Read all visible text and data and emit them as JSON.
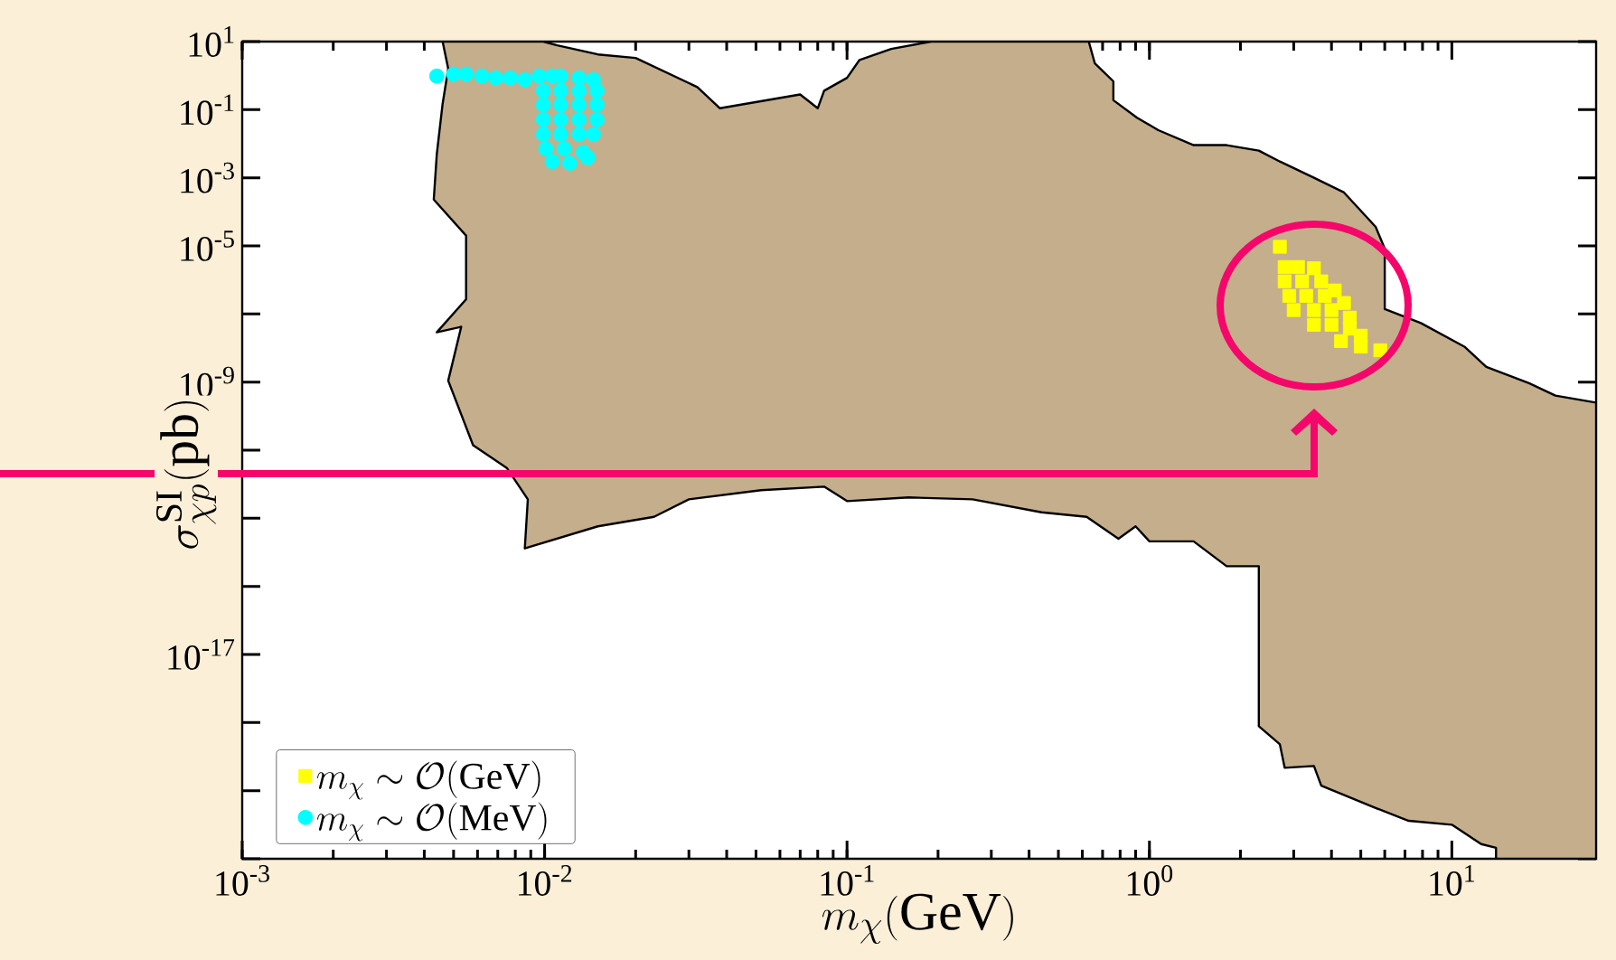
{
  "chart_data": {
    "type": "area",
    "xlabel": "m_\\chi(\\mathrm{GeV})",
    "ylabel": "\\sigma^{\\mathrm{SI}}_{\\chi p}(\\mathrm{pb})",
    "log": "xy",
    "legend": "bottom left",
    "xlim": [
      0.001,
      30
    ],
    "ylim": [
      1e-23,
      10
    ],
    "xticks": [
      {
        "value": 0.001,
        "label": "10$^{-3}$"
      },
      {
        "value": 0.01,
        "label": "10$^{-2}$"
      },
      {
        "value": 0.1,
        "label": "10$^{-1}$"
      },
      {
        "value": 1,
        "label": "10$^{0}$"
      },
      {
        "value": 10,
        "label": "10$^{1}$"
      }
    ],
    "yticks": [
      {
        "value": 10,
        "label": "10$^{1}$"
      },
      {
        "value": 0.1,
        "label": "10$^{-1}$"
      },
      {
        "value": 0.001,
        "label": "10$^{-3}$"
      },
      {
        "value": 1e-05,
        "label": "10$^{-5}$"
      },
      {
        "value": 1e-07,
        "label": null
      },
      {
        "value": 1e-09,
        "label": "10$^{-9}$"
      },
      {
        "value": 1e-11,
        "label": null
      },
      {
        "value": 1e-13,
        "label": null
      },
      {
        "value": 1e-15,
        "label": null
      },
      {
        "value": 1e-17,
        "label": "10$^{-17}$"
      },
      {
        "value": 1e-19,
        "label": null
      },
      {
        "value": 1e-21,
        "label": null
      },
      {
        "value": 1e-23,
        "label": null
      }
    ],
    "series": [
      {
        "color": "#c4ae8c",
        "x": [
          0.0046,
          0.0048,
          0.0046,
          0.0044,
          0.0043,
          0.0055,
          0.0055,
          0.0044,
          0.0053,
          0.0048,
          0.0058,
          0.0075,
          0.0088,
          0.0086,
          0.015,
          0.023,
          0.03,
          0.052,
          0.084,
          0.1,
          0.16,
          0.26,
          0.44,
          0.62,
          0.79,
          0.9,
          1.0,
          1.4,
          1.8,
          2.3,
          2.3,
          2.7,
          2.8,
          3.5,
          3.7,
          5.6,
          7.2,
          10,
          12.5,
          14,
          14,
          30,
          30,
          22,
          18,
          13,
          11,
          7.9,
          6.0,
          6.0,
          5.6,
          4.4,
          3.5,
          2.7,
          2.3,
          1.8,
          1.4,
          1.07,
          0.91,
          0.76,
          0.76,
          0.66,
          0.63,
          0.19,
          0.14,
          0.11,
          0.1,
          0.084,
          0.08,
          0.07,
          0.038,
          0.032,
          0.02,
          0.015,
          0.011,
          0.0099
        ],
        "values": [
          10,
          1.6,
          0.15,
          0.0049,
          0.00023,
          2e-05,
          2.7e-07,
          2.9e-08,
          4.2e-08,
          1.1e-09,
          1.4e-11,
          3e-12,
          3.6e-13,
          1.3e-14,
          5.8e-14,
          1.1e-13,
          3.6e-13,
          6.7e-13,
          8.5e-13,
          3.2e-13,
          4.1e-13,
          3.6e-13,
          1.5e-13,
          1.1e-13,
          2.5e-14,
          5.8e-14,
          2.1e-14,
          2.1e-14,
          3.9e-15,
          3.9e-15,
          7.8e-20,
          2.3e-20,
          4.7e-21,
          5.3e-21,
          1.4e-21,
          3.1e-22,
          1.3e-22,
          1e-22,
          2.7e-23,
          2.1e-23,
          1e-23,
          1e-23,
          2.5e-10,
          4e-10,
          9.3e-10,
          2.8e-09,
          1.1e-08,
          5.4e-08,
          1.4e-07,
          8.3e-06,
          3.6e-05,
          0.00037,
          0.001,
          0.003,
          0.0063,
          0.0091,
          0.0091,
          0.025,
          0.058,
          0.19,
          0.68,
          2.3,
          10,
          10,
          6.1,
          2.9,
          0.86,
          0.36,
          0.11,
          0.28,
          0.11,
          0.46,
          3.3,
          4.2,
          7.8,
          10
        ]
      },
      {
        "type": "scatter",
        "name": "m_\\chi \\sim \\mathcal{O}(\\mathrm{GeV})",
        "color": "#ffff00",
        "marker": "square",
        "x": [
          2.7,
          2.8,
          3.1,
          3.5,
          2.8,
          3.2,
          3.7,
          4.1,
          2.9,
          3.3,
          3.8,
          4.4,
          3.0,
          3.5,
          4.0,
          4.6,
          3.5,
          4.0,
          4.6,
          5.0,
          4.3,
          5.0,
          5.8
        ],
        "values": [
          9.4e-06,
          2.4e-06,
          2.4e-06,
          2.2e-06,
          9.1e-07,
          9.1e-07,
          9.1e-07,
          4.9e-07,
          3.4e-07,
          3.4e-07,
          3.4e-07,
          2.1e-07,
          1.3e-07,
          1.3e-07,
          1.3e-07,
          7.8e-08,
          4.8e-08,
          4.8e-08,
          3.7e-08,
          2.3e-08,
          1.6e-08,
          1.1e-08,
          8.6e-09
        ]
      },
      {
        "type": "scatter",
        "name": "m_\\chi \\sim \\mathcal{O}(\\mathrm{MeV})",
        "color": "#00ffff",
        "marker": "circle",
        "x": [
          0.0044,
          0.005,
          0.0055,
          0.0062,
          0.0069,
          0.0077,
          0.0086,
          0.0096,
          0.0106,
          0.0113,
          0.013,
          0.0145,
          0.0099,
          0.0113,
          0.013,
          0.0149,
          0.0099,
          0.0113,
          0.013,
          0.0149,
          0.0099,
          0.0113,
          0.013,
          0.0149,
          0.0099,
          0.0113,
          0.013,
          0.0145,
          0.0101,
          0.0116,
          0.0134,
          0.0106,
          0.0121,
          0.0139
        ],
        "values": [
          0.97,
          1.1,
          1.1,
          0.97,
          0.86,
          0.86,
          0.76,
          0.97,
          0.97,
          0.97,
          0.86,
          0.76,
          0.36,
          0.36,
          0.36,
          0.36,
          0.14,
          0.14,
          0.14,
          0.14,
          0.051,
          0.051,
          0.051,
          0.051,
          0.019,
          0.019,
          0.019,
          0.019,
          0.0071,
          0.0071,
          0.0056,
          0.003,
          0.0027,
          0.0039
        ]
      }
    ]
  }
}
